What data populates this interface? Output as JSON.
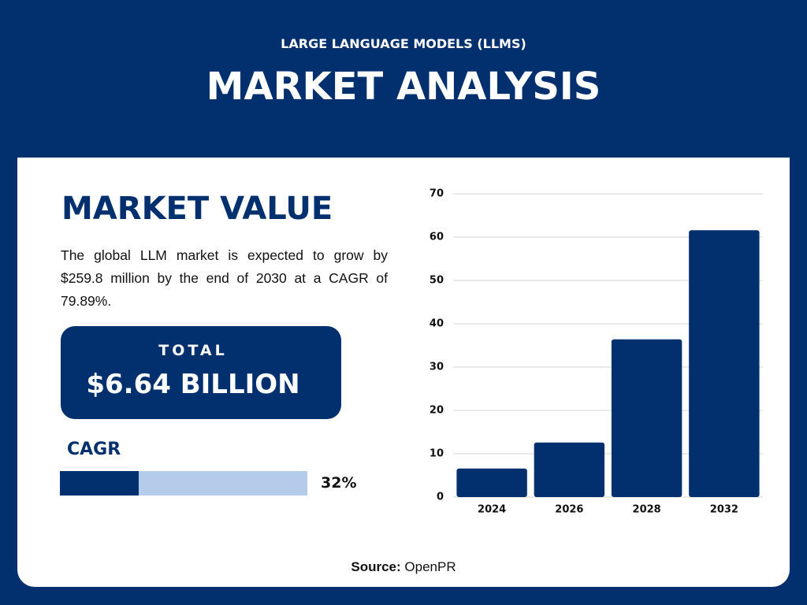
{
  "header": {
    "subtitle": "LARGE LANGUAGE MODELS (LLMS)",
    "title": "MARKET ANALYSIS"
  },
  "market_value": {
    "heading": "MARKET VALUE",
    "description": "The global LLM market is expected to grow by $259.8 million by the end of 2030 at a CAGR of 79.89%."
  },
  "total": {
    "label": "TOTAL",
    "value": "$6.64 BILLION"
  },
  "cagr": {
    "label": "CAGR",
    "value": 32,
    "value_label": "32%"
  },
  "source": {
    "label": "Source:",
    "value": "OpenPR"
  },
  "chart_data": {
    "type": "bar",
    "categories": [
      "2024",
      "2026",
      "2028",
      "2032"
    ],
    "values": [
      6.6,
      12.6,
      36.4,
      61.6
    ],
    "color": "#02306f",
    "ylim": [
      0,
      70
    ],
    "yticks": [
      0,
      10,
      20,
      30,
      40,
      50,
      60,
      70
    ],
    "grid": true
  }
}
